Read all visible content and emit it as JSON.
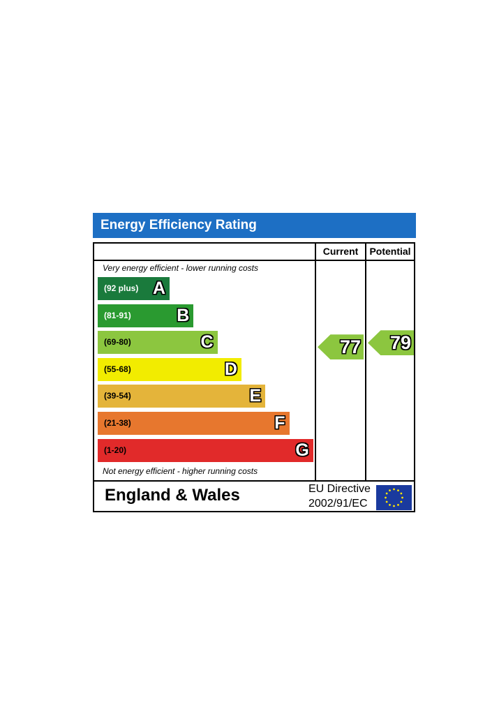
{
  "title": "Energy Efficiency Rating",
  "columns": {
    "current": "Current",
    "potential": "Potential"
  },
  "notes": {
    "top": "Very energy efficient - lower running costs",
    "bottom": "Not energy efficient - higher running costs"
  },
  "footer": {
    "country": "England & Wales",
    "directive_line1": "EU Directive",
    "directive_line2": "2002/91/EC"
  },
  "chart_data": {
    "type": "bar",
    "categories": [
      "A",
      "B",
      "C",
      "D",
      "E",
      "F",
      "G"
    ],
    "bands": [
      {
        "letter": "A",
        "range": "(92 plus)",
        "min": 92,
        "max": 100,
        "color": "#1a7a3c",
        "text_color": "#ffffff"
      },
      {
        "letter": "B",
        "range": "(81-91)",
        "min": 81,
        "max": 91,
        "color": "#2a9a30",
        "text_color": "#ffffff"
      },
      {
        "letter": "C",
        "range": "(69-80)",
        "min": 69,
        "max": 80,
        "color": "#8cc63f",
        "text_color": "#000000"
      },
      {
        "letter": "D",
        "range": "(55-68)",
        "min": 55,
        "max": 68,
        "color": "#f2ec00",
        "text_color": "#000000"
      },
      {
        "letter": "E",
        "range": "(39-54)",
        "min": 39,
        "max": 54,
        "color": "#e4b43a",
        "text_color": "#000000"
      },
      {
        "letter": "F",
        "range": "(21-38)",
        "min": 21,
        "max": 38,
        "color": "#e7772e",
        "text_color": "#000000"
      },
      {
        "letter": "G",
        "range": "(1-20)",
        "min": 1,
        "max": 20,
        "color": "#e12a2a",
        "text_color": "#000000"
      }
    ],
    "current": {
      "value": 77,
      "band": "C",
      "color": "#8cc63f"
    },
    "potential": {
      "value": 79,
      "band": "C",
      "color": "#8cc63f"
    }
  }
}
